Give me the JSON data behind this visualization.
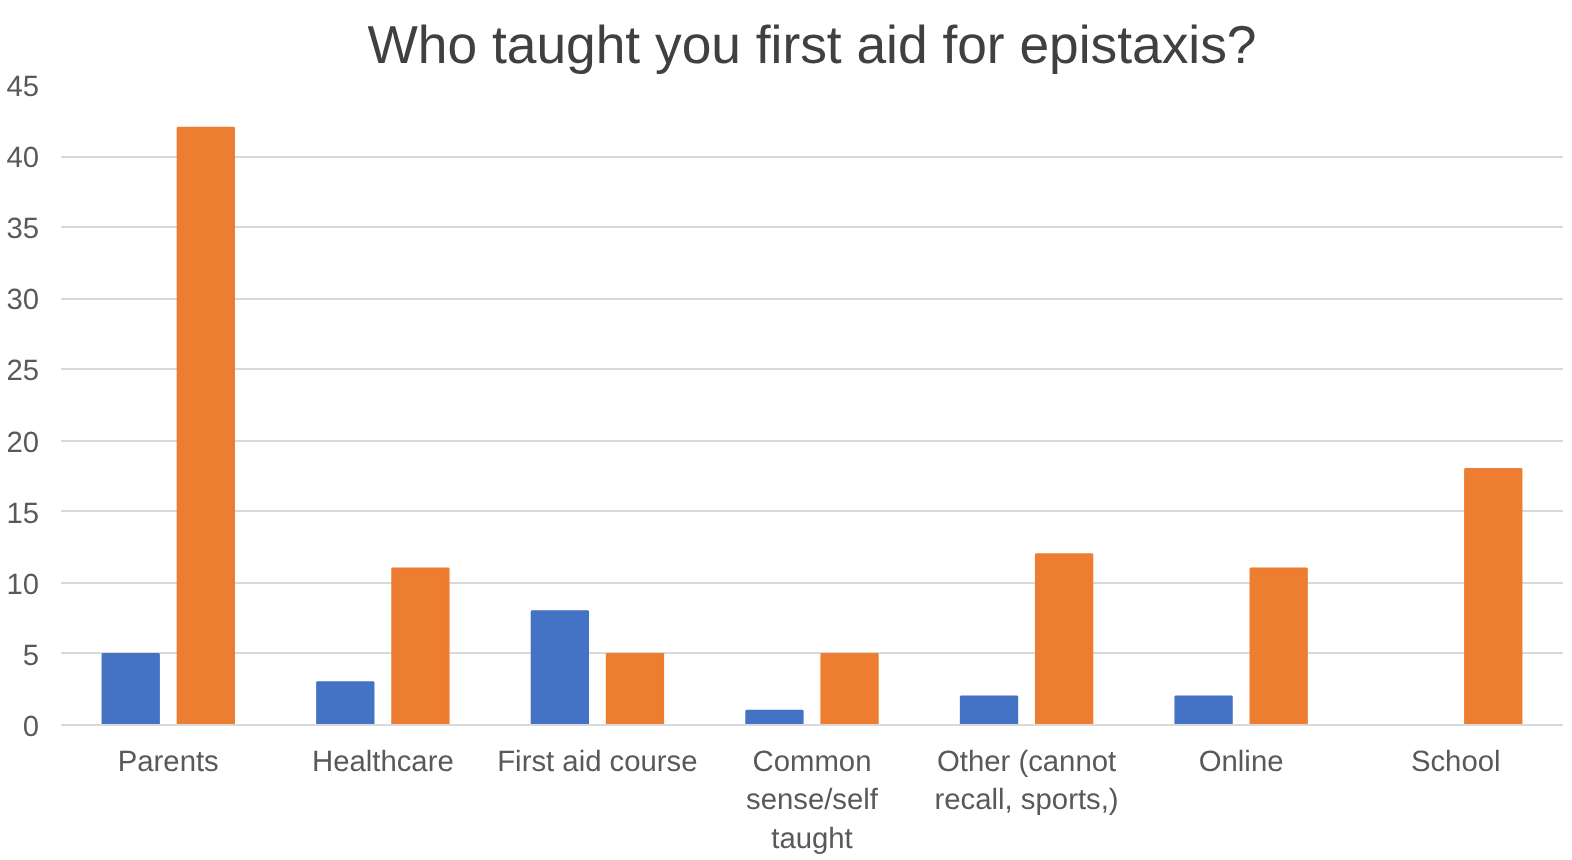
{
  "chart_data": {
    "type": "bar",
    "title": "Who taught you first aid for epistaxis?",
    "categories": [
      "Parents",
      "Healthcare",
      "First aid course",
      "Common sense/self taught",
      "Other (cannot recall, sports,)",
      "Online",
      "School"
    ],
    "series": [
      {
        "color": "#4472c4",
        "values": [
          5,
          3,
          8,
          1,
          2,
          2,
          0
        ]
      },
      {
        "color": "#ed7d31",
        "values": [
          42,
          11,
          5,
          5,
          12,
          11,
          18
        ]
      }
    ],
    "ylim": [
      0,
      45
    ],
    "yticks": [
      0,
      5,
      10,
      15,
      20,
      25,
      30,
      35,
      40,
      45
    ],
    "grid": "y"
  }
}
